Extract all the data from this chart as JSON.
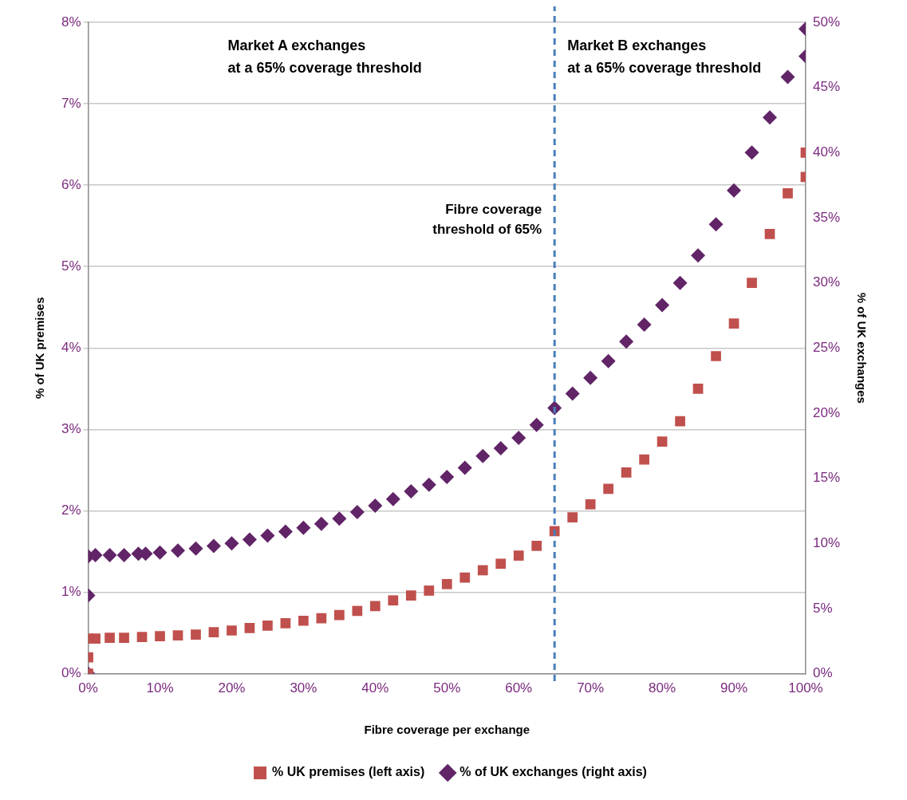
{
  "chart_data": {
    "type": "scatter",
    "xlabel": "Fibre coverage per exchange",
    "ylabel": "% of UK premises",
    "y2label": "% of UK exchanges",
    "xlim": [
      0,
      100
    ],
    "xticks": [
      {
        "value": 0,
        "label": "0%"
      },
      {
        "value": 10,
        "label": "10%"
      },
      {
        "value": 20,
        "label": "20%"
      },
      {
        "value": 30,
        "label": "30%"
      },
      {
        "value": 40,
        "label": "40%"
      },
      {
        "value": 50,
        "label": "50%"
      },
      {
        "value": 60,
        "label": "60%"
      },
      {
        "value": 70,
        "label": "70%"
      },
      {
        "value": 80,
        "label": "80%"
      },
      {
        "value": 90,
        "label": "90%"
      },
      {
        "value": 100,
        "label": "100%"
      }
    ],
    "ylim": [
      0,
      8
    ],
    "yticks": [
      {
        "value": 0,
        "label": "0%"
      },
      {
        "value": 1,
        "label": "1%"
      },
      {
        "value": 2,
        "label": "2%"
      },
      {
        "value": 3,
        "label": "3%"
      },
      {
        "value": 4,
        "label": "4%"
      },
      {
        "value": 5,
        "label": "5%"
      },
      {
        "value": 6,
        "label": "6%"
      },
      {
        "value": 7,
        "label": "7%"
      },
      {
        "value": 8,
        "label": "8%"
      }
    ],
    "y2lim": [
      0,
      50
    ],
    "y2ticks": [
      {
        "value": 0,
        "label": "0%"
      },
      {
        "value": 5,
        "label": "5%"
      },
      {
        "value": 10,
        "label": "10%"
      },
      {
        "value": 15,
        "label": "15%"
      },
      {
        "value": 20,
        "label": "20%"
      },
      {
        "value": 25,
        "label": "25%"
      },
      {
        "value": 30,
        "label": "30%"
      },
      {
        "value": 35,
        "label": "35%"
      },
      {
        "value": 40,
        "label": "40%"
      },
      {
        "value": 45,
        "label": "45%"
      },
      {
        "value": 50,
        "label": "50%"
      }
    ],
    "grid": "y",
    "legend": "bottom",
    "ref_lines": [
      {
        "axis": "x",
        "value": 65,
        "label": "Fibre coverage threshold of 65%",
        "color": "#4a7ebb",
        "line_style": "dashed"
      }
    ],
    "annotations": [
      "Market A exchanges\nat a 65% coverage threshold",
      "Market B exchanges\nat a 65% coverage threshold"
    ],
    "series": [
      {
        "name": "% UK premises (left axis)",
        "color": "#c0504d",
        "marker": "square",
        "x": [
          0,
          0,
          0,
          1,
          3,
          5,
          7.5,
          10,
          12.5,
          15,
          17.5,
          20,
          22.5,
          25,
          27.5,
          30,
          32.5,
          35,
          37.5,
          40,
          42.5,
          45,
          47.5,
          50,
          52.5,
          55,
          57.5,
          60,
          62.5,
          65,
          67.5,
          70,
          72.5,
          75,
          77.5,
          80,
          82.5,
          85,
          87.5,
          90,
          92.5,
          95,
          97.5,
          100,
          100
        ],
        "values": [
          0,
          0.2,
          0.43,
          0.43,
          0.44,
          0.44,
          0.45,
          0.46,
          0.47,
          0.48,
          0.51,
          0.53,
          0.56,
          0.59,
          0.62,
          0.65,
          0.68,
          0.72,
          0.77,
          0.83,
          0.9,
          0.96,
          1.02,
          1.1,
          1.18,
          1.27,
          1.35,
          1.45,
          1.57,
          1.75,
          1.92,
          2.08,
          2.27,
          2.47,
          2.63,
          2.85,
          3.1,
          3.5,
          3.9,
          4.3,
          4.8,
          5.4,
          5.9,
          6.1,
          6.4
        ]
      },
      {
        "name": "% of UK exchanges (right axis)",
        "color": "#612467",
        "marker": "diamond",
        "axis": "y2",
        "x": [
          0,
          0,
          0,
          1,
          3,
          5,
          7,
          8,
          10,
          12.5,
          15,
          17.5,
          20,
          22.5,
          25,
          27.5,
          30,
          32.5,
          35,
          37.5,
          40,
          42.5,
          45,
          47.5,
          50,
          52.5,
          55,
          57.5,
          60,
          62.5,
          65,
          67.5,
          70,
          72.5,
          75,
          77.5,
          80,
          82.5,
          85,
          87.5,
          90,
          92.5,
          95,
          97.5,
          100,
          100
        ],
        "values": [
          0,
          6,
          9,
          9.1,
          9.1,
          9.1,
          9.2,
          9.2,
          9.3,
          9.45,
          9.6,
          9.8,
          10,
          10.3,
          10.6,
          10.9,
          11.2,
          11.5,
          11.9,
          12.4,
          12.9,
          13.4,
          14,
          14.5,
          15.1,
          15.8,
          16.7,
          17.3,
          18.1,
          19.1,
          20.4,
          21.5,
          22.7,
          24,
          25.5,
          26.8,
          28.3,
          30,
          32.1,
          34.5,
          37.1,
          40,
          42.7,
          45.8,
          47.4,
          49.5
        ]
      }
    ]
  }
}
